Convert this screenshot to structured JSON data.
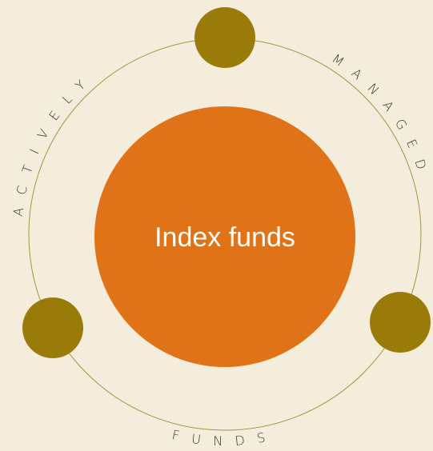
{
  "center_label": "Index funds",
  "ring_words": [
    "ACTIVELY",
    "MANAGED",
    "FUNDS"
  ]
}
